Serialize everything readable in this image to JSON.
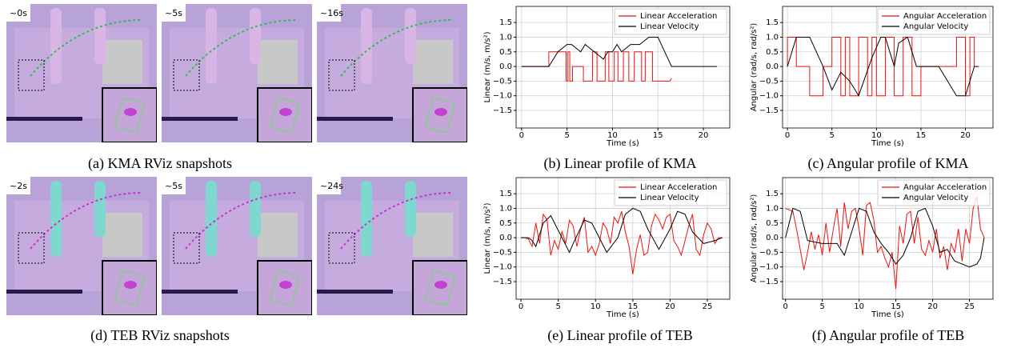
{
  "snapshots": [
    {
      "times": [
        "~0s",
        "~5s",
        "~16s"
      ],
      "caption": "(a) KMA RViz snapshots"
    },
    {
      "times": [
        "~2s",
        "~5s",
        "~24s"
      ],
      "caption": "(d) TEB RViz snapshots"
    }
  ],
  "chart_data": [
    {
      "type": "line",
      "caption": "(b) Linear profile of KMA",
      "xlabel": "Time (s)",
      "ylabel": "Linear (m/s, m/s²)",
      "xlim": [
        -0.6,
        22.9
      ],
      "ylim": [
        -2.1,
        2.05
      ],
      "xticks": [
        0,
        5,
        10,
        15,
        20
      ],
      "yticks": [
        {
          "value": -1.5,
          "label": "−1.5"
        },
        {
          "value": -1,
          "label": "−1.0"
        },
        {
          "value": -0.5,
          "label": "−0.5"
        },
        {
          "value": 0,
          "label": "0.0"
        },
        0.5,
        {
          "value": 1,
          "label": "1.0"
        },
        1.5
      ],
      "grid": true,
      "legend": "upper-right",
      "series": [
        {
          "name": "Linear Acceleration",
          "color": "#ee1111",
          "x": [
            0,
            3,
            3,
            4.9,
            4.9,
            5.1,
            5.1,
            5.3,
            5.3,
            5.6,
            5.6,
            6.8,
            6.8,
            7.8,
            7.8,
            8.3,
            8.3,
            9.2,
            9.2,
            9.6,
            9.6,
            10.2,
            10.2,
            10.6,
            10.6,
            11.2,
            11.2,
            11.8,
            11.8,
            12.4,
            12.4,
            13.2,
            13.2,
            13.6,
            13.6,
            14.4,
            14.4,
            16.3,
            16.5
          ],
          "values": [
            0,
            0,
            0.5,
            0.5,
            -0.5,
            -0.5,
            0.5,
            0.5,
            -0.5,
            -0.5,
            0,
            0,
            -0.5,
            -0.5,
            0.5,
            0.5,
            -0.5,
            -0.5,
            0.5,
            0.5,
            -0.5,
            -0.5,
            0.5,
            0.5,
            -0.5,
            -0.5,
            0.5,
            0.5,
            -0.5,
            -0.5,
            0.5,
            0.5,
            -0.5,
            -0.5,
            0.5,
            0.5,
            -0.5,
            -0.5,
            -0.4
          ]
        },
        {
          "name": "Linear Velocity",
          "color": "#000000",
          "x": [
            0,
            3,
            4,
            5,
            5.5,
            6.5,
            7,
            8,
            9,
            9.5,
            10,
            10.5,
            11,
            12,
            13,
            14,
            15,
            16.5,
            21.5
          ],
          "values": [
            0,
            0,
            0.5,
            0.75,
            0.75,
            0.5,
            0.75,
            0.5,
            0.25,
            0.5,
            0.5,
            0.75,
            0.5,
            0.75,
            0.75,
            1,
            1,
            0,
            0
          ]
        }
      ]
    },
    {
      "type": "line",
      "caption": "(c) Angular profile of KMA",
      "xlabel": "Time (s)",
      "ylabel": "Angular (rad/s, rad/s²)",
      "xlim": [
        -0.55,
        23.1
      ],
      "ylim": [
        -2.1,
        2.05
      ],
      "xticks": [
        0,
        5,
        10,
        15,
        20
      ],
      "yticks": [
        {
          "value": -1.5,
          "label": "−1.5"
        },
        {
          "value": -1,
          "label": "−1.0"
        },
        {
          "value": -0.5,
          "label": "−0.5"
        },
        {
          "value": 0,
          "label": "0.0"
        },
        0.5,
        {
          "value": 1,
          "label": "1.0"
        },
        1.5
      ],
      "grid": true,
      "legend": "upper-right",
      "series": [
        {
          "name": "Angular Acceleration",
          "color": "#ee1111",
          "x": [
            0,
            0,
            1,
            1,
            2.5,
            2.5,
            4,
            4,
            5,
            5,
            6,
            6,
            6.5,
            6.5,
            7,
            7,
            8,
            8,
            9,
            9,
            9.5,
            9.5,
            10,
            10,
            11,
            11,
            12,
            12,
            13,
            13,
            14,
            14,
            15,
            15,
            19,
            19,
            20,
            20,
            20.5,
            20.5,
            21,
            21
          ],
          "values": [
            0,
            1,
            1,
            0,
            0,
            -1,
            -1,
            0,
            0,
            1,
            1,
            -1,
            -1,
            1,
            1,
            -1,
            -1,
            1,
            1,
            -1,
            -1,
            1,
            1,
            -1,
            -1,
            1,
            1,
            -1,
            -1,
            1,
            1,
            -1,
            -1,
            0,
            0,
            1,
            1,
            -1,
            -1,
            1,
            1,
            0
          ]
        },
        {
          "name": "Angular Velocity",
          "color": "#000000",
          "x": [
            0,
            1,
            2.5,
            4,
            5,
            6,
            7,
            8,
            9.5,
            10.5,
            11,
            12,
            12.5,
            13.5,
            14.5,
            16,
            17,
            18,
            19,
            20,
            21,
            21.5
          ],
          "values": [
            0,
            1,
            1,
            0,
            -0.8,
            -0.2,
            -0.5,
            -1,
            0.3,
            1,
            1,
            0,
            0.8,
            1,
            0,
            0,
            0,
            -0.5,
            -1,
            -1,
            0,
            0
          ]
        }
      ]
    },
    {
      "type": "line",
      "caption": "(e) Linear profile of TEB",
      "xlabel": "Time (s)",
      "ylabel": "Linear (m/s, m/s²)",
      "xlim": [
        -0.65,
        28
      ],
      "ylim": [
        -2.1,
        2.05
      ],
      "xticks": [
        0,
        5,
        10,
        15,
        20,
        25
      ],
      "yticks": [
        {
          "value": -1.5,
          "label": "−1.5"
        },
        {
          "value": -1,
          "label": "−1.0"
        },
        {
          "value": -0.5,
          "label": "−0.5"
        },
        {
          "value": 0,
          "label": "0.0"
        },
        0.5,
        {
          "value": 1,
          "label": "1.0"
        },
        1.5
      ],
      "grid": true,
      "legend": "upper-right",
      "series": [
        {
          "name": "Linear Acceleration",
          "color": "#ee1111",
          "x": [
            0,
            0.5,
            1,
            1.5,
            2,
            2.5,
            3,
            3.5,
            4,
            4.5,
            5,
            5.5,
            6,
            6.5,
            7,
            7.5,
            8,
            8.5,
            9,
            9.5,
            10,
            10.5,
            11,
            11.5,
            12,
            12.5,
            13,
            13.5,
            14,
            14.5,
            15,
            15.5,
            16,
            16.5,
            17,
            17.5,
            18,
            18.5,
            19,
            19.5,
            20,
            20.5,
            21,
            21.5,
            22,
            22.5,
            23,
            23.5,
            24,
            24.5,
            25,
            25.5,
            26,
            26.5,
            27
          ],
          "values": [
            0,
            0,
            -0.05,
            -0.3,
            0.5,
            -0.2,
            0.8,
            0.6,
            -0.6,
            -0.1,
            -0.4,
            0.2,
            -0.2,
            0.6,
            0.4,
            -0.3,
            0.3,
            0.7,
            -0.5,
            -0.3,
            -0.6,
            -0.2,
            0.5,
            0.3,
            -0.2,
            0.7,
            0.5,
            0.9,
            0.2,
            -0.3,
            -1.25,
            -0.4,
            0.1,
            -0.6,
            -0.5,
            0.4,
            0.8,
            0.6,
            0.3,
            0.7,
            0.8,
            -0.1,
            -0.3,
            -0.6,
            -0.1,
            0.4,
            0.8,
            -0.4,
            -0.6,
            0.1,
            0.5,
            0.3,
            -0.2,
            0,
            0
          ]
        },
        {
          "name": "Linear Velocity",
          "color": "#000000",
          "x": [
            0,
            1,
            1.5,
            2,
            3,
            4,
            5,
            6.5,
            7,
            8.5,
            9.5,
            11.5,
            13,
            14,
            15,
            16,
            17,
            18.5,
            20,
            21,
            22,
            23,
            24.5,
            26,
            27
          ],
          "values": [
            0,
            0,
            -0.1,
            -0.3,
            0.5,
            0.75,
            0.25,
            -0.5,
            -0.2,
            0.6,
            0.5,
            -0.5,
            0,
            0.8,
            1,
            0.9,
            0.3,
            -0.4,
            0.3,
            0.9,
            0.8,
            0.2,
            -0.2,
            -0.1,
            0
          ]
        }
      ]
    },
    {
      "type": "line",
      "caption": "(f) Angular profile of TEB",
      "xlabel": "Time (s)",
      "ylabel": "Angular (rad/s, rad/s²)",
      "xlim": [
        -0.4,
        28.2
      ],
      "ylim": [
        -2.1,
        2.05
      ],
      "xticks": [
        0,
        5,
        10,
        15,
        20,
        25
      ],
      "yticks": [
        {
          "value": -1.5,
          "label": "−1.5"
        },
        {
          "value": -1,
          "label": "−1.0"
        },
        {
          "value": -0.5,
          "label": "−0.5"
        },
        {
          "value": 0,
          "label": "0.0"
        },
        0.5,
        {
          "value": 1,
          "label": "1.0"
        },
        1.5
      ],
      "grid": true,
      "legend": "upper-right",
      "series": [
        {
          "name": "Angular Acceleration",
          "color": "#ee1111",
          "x": [
            0,
            0.5,
            1,
            1.5,
            2,
            2.5,
            3,
            3.5,
            4,
            4.5,
            5,
            5.5,
            6,
            6.5,
            7,
            7.5,
            8,
            8.5,
            9,
            9.5,
            10,
            10.5,
            11,
            11.5,
            12,
            12.5,
            13,
            13.5,
            14,
            14.5,
            15,
            15.5,
            16,
            16.5,
            17,
            17.5,
            18,
            18.5,
            19,
            19.5,
            20,
            20.5,
            21,
            21.5,
            22,
            22.5,
            23,
            23.5,
            24,
            24.5,
            25,
            25.5,
            26,
            26.5,
            27
          ],
          "values": [
            1,
            0.95,
            0.9,
            0.3,
            -0.4,
            -1.1,
            -0.5,
            0.2,
            -0.4,
            0.1,
            -0.6,
            0.5,
            -0.5,
            0.3,
            1,
            -0.3,
            1.2,
            0.3,
            0.9,
            1,
            0.3,
            -0.6,
            1.1,
            1.2,
            0.6,
            -0.5,
            -0.3,
            -0.7,
            -1,
            -0.5,
            -1.75,
            0.4,
            -0.2,
            0.8,
            0.9,
            -0.2,
            0.7,
            -0.4,
            -0.6,
            -0.1,
            -0.5,
            0.3,
            -0.7,
            -0.3,
            -1.1,
            -0.2,
            -0.5,
            0.3,
            -0.8,
            0.3,
            -0.2,
            1,
            1.4,
            0.3,
            0
          ]
        },
        {
          "name": "Angular Velocity",
          "color": "#000000",
          "x": [
            0,
            1,
            2,
            2.5,
            3,
            5,
            7,
            8,
            9,
            10,
            11,
            12,
            13,
            14,
            15,
            16,
            17,
            18,
            19,
            20,
            21,
            22,
            23,
            24,
            25,
            26,
            26.5,
            27
          ],
          "values": [
            0,
            1,
            0.9,
            0.4,
            -0.1,
            -0.2,
            -0.2,
            -0.6,
            0.2,
            1,
            0.9,
            0.2,
            -0.2,
            -0.5,
            -0.9,
            -0.6,
            0,
            0.9,
            1,
            0.4,
            -0.5,
            -0.4,
            -0.8,
            -0.9,
            -1,
            -0.9,
            -0.7,
            0
          ]
        }
      ]
    }
  ]
}
